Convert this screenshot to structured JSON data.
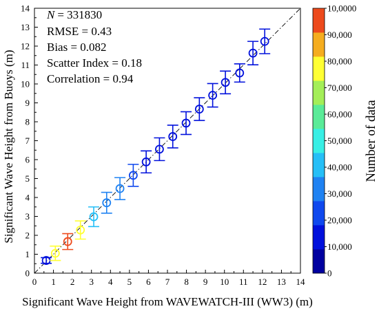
{
  "chart_data": {
    "type": "scatter",
    "title": "",
    "xlabel": "Significant Wave Height from WAVEWATCH-III (WW3) (m)",
    "ylabel": "Significant Wave Height from Buoys (m)",
    "xlim": [
      0,
      14
    ],
    "ylim": [
      0,
      14
    ],
    "xticks": [
      "0",
      "1",
      "2",
      "3",
      "4",
      "5",
      "6",
      "7",
      "8",
      "9",
      "10",
      "11",
      "12",
      "13",
      "14"
    ],
    "yticks": [
      "0",
      "1",
      "2",
      "3",
      "4",
      "5",
      "6",
      "7",
      "8",
      "9",
      "10",
      "11",
      "12",
      "13",
      "14"
    ],
    "grid": false,
    "reference_line": "y = x (dash-dot)",
    "stats": {
      "n_symbol": "N",
      "n_value": "= 331830",
      "rmse": "RMSE = 0.43",
      "bias": "Bias = 0.082",
      "scatter_index": "Scatter Index = 0.18",
      "correlation": "Correlation = 0.94"
    },
    "points": [
      {
        "x": 0.62,
        "y": 0.67,
        "err": 0.15,
        "count": 15000
      },
      {
        "x": 1.1,
        "y": 1.05,
        "err": 0.38,
        "count": 78000
      },
      {
        "x": 1.75,
        "y": 1.67,
        "err": 0.42,
        "count": 95000
      },
      {
        "x": 2.42,
        "y": 2.28,
        "err": 0.48,
        "count": 75000
      },
      {
        "x": 3.12,
        "y": 2.98,
        "err": 0.52,
        "count": 45000
      },
      {
        "x": 3.8,
        "y": 3.72,
        "err": 0.55,
        "count": 35000
      },
      {
        "x": 4.5,
        "y": 4.47,
        "err": 0.58,
        "count": 28000
      },
      {
        "x": 5.2,
        "y": 5.17,
        "err": 0.58,
        "count": 22000
      },
      {
        "x": 5.88,
        "y": 5.88,
        "err": 0.58,
        "count": 18000
      },
      {
        "x": 6.58,
        "y": 6.55,
        "err": 0.6,
        "count": 15000
      },
      {
        "x": 7.28,
        "y": 7.22,
        "err": 0.6,
        "count": 15000
      },
      {
        "x": 7.98,
        "y": 7.93,
        "err": 0.6,
        "count": 15000
      },
      {
        "x": 8.68,
        "y": 8.67,
        "err": 0.6,
        "count": 15000
      },
      {
        "x": 9.38,
        "y": 9.4,
        "err": 0.62,
        "count": 15000
      },
      {
        "x": 10.05,
        "y": 10.08,
        "err": 0.6,
        "count": 15000
      },
      {
        "x": 10.8,
        "y": 10.58,
        "err": 0.48,
        "count": 15000
      },
      {
        "x": 11.5,
        "y": 11.63,
        "err": 0.62,
        "count": 15000
      },
      {
        "x": 12.12,
        "y": 12.25,
        "err": 0.65,
        "count": 15000
      }
    ],
    "colorbar": {
      "title": "Number of data",
      "range": [
        0,
        100000
      ],
      "tick_labels": [
        "0",
        "10,000",
        "20,000",
        "30,000",
        "40,000",
        "50,000",
        "60,000",
        "70,000",
        "80,000",
        "90,000",
        "10,0000"
      ],
      "colors": [
        "#0000a0",
        "#0010dc",
        "#0f48ee",
        "#1f82f2",
        "#26bff7",
        "#38efe5",
        "#5aeb98",
        "#a4ee58",
        "#ffff33",
        "#f5ad1f",
        "#ed4a1c"
      ]
    }
  }
}
